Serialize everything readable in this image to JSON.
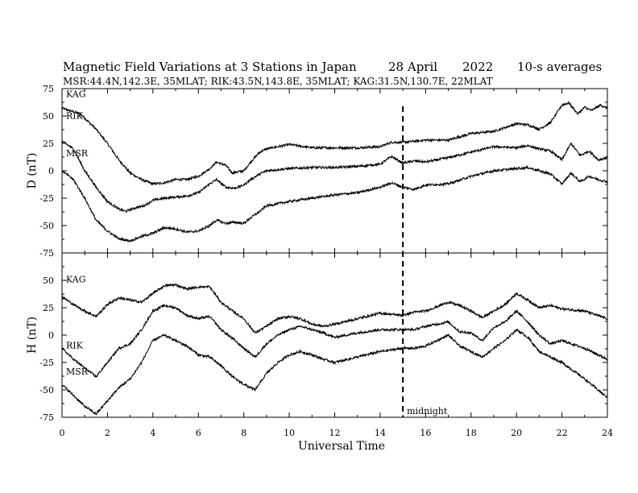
{
  "chart_data": {
    "type": "line",
    "title": "Magnetic Field Variations at 3 Stations in Japan",
    "date": "28  April",
    "year": "2022",
    "averaging": "10-s averages",
    "subtitle": "MSR:44.4N,142.3E, 35MLAT;   RIK:43.5N,143.8E, 35MLAT;   KAG:31.5N,130.7E, 22MLAT",
    "xlabel": "Universal Time",
    "xlim": [
      0,
      24
    ],
    "x_ticks": [
      "0",
      "2",
      "4",
      "6",
      "8",
      "10",
      "12",
      "14",
      "16",
      "18",
      "20",
      "22",
      "24"
    ],
    "annotation": {
      "label": "midnight",
      "x": 15
    },
    "panels": [
      {
        "ylabel": "D (nT)",
        "ylim": [
          -75,
          75
        ],
        "y_ticks": [
          "75",
          "50",
          "25",
          "0",
          "-25",
          "-50",
          "-75"
        ],
        "series": [
          {
            "name": "KAG",
            "x": [
              0,
              0.8,
              1.5,
              2,
              2.5,
              3,
              3.5,
              4,
              4.5,
              5,
              5.5,
              6,
              6.5,
              6.8,
              7.2,
              7.5,
              8,
              8.3,
              8.7,
              9,
              9.5,
              10,
              11,
              12,
              13,
              14,
              14.5,
              15,
              15.5,
              16,
              17,
              18,
              19,
              20,
              20.5,
              21,
              21.5,
              22,
              22.3,
              22.7,
              23,
              23.3,
              23.7,
              24
            ],
            "values": [
              57,
              52,
              38,
              25,
              10,
              -2,
              -8,
              -12,
              -11,
              -8,
              -8,
              -5,
              2,
              8,
              5,
              -2,
              0,
              8,
              17,
              20,
              22,
              24,
              21,
              21,
              21,
              22,
              26,
              26,
              27,
              28,
              28,
              34,
              36,
              43,
              42,
              38,
              44,
              60,
              62,
              52,
              58,
              55,
              60,
              57
            ]
          },
          {
            "name": "RIK",
            "x": [
              0,
              0.5,
              1,
              1.5,
              2,
              2.5,
              2.8,
              3.2,
              3.6,
              4,
              4.5,
              5,
              5.5,
              6,
              6.5,
              6.8,
              7.2,
              7.6,
              8,
              8.3,
              8.7,
              9,
              10,
              11,
              12,
              13,
              14,
              14.5,
              15,
              15.5,
              16,
              17,
              18,
              19,
              20,
              20.5,
              21,
              21.5,
              22,
              22.4,
              22.8,
              23.2,
              23.6,
              24
            ],
            "values": [
              27,
              20,
              0,
              -15,
              -28,
              -35,
              -37,
              -34,
              -32,
              -27,
              -25,
              -24,
              -23,
              -20,
              -12,
              -8,
              -15,
              -16,
              -13,
              -8,
              -3,
              0,
              2,
              3,
              3,
              4,
              6,
              13,
              7,
              9,
              8,
              12,
              17,
              22,
              21,
              23,
              20,
              18,
              10,
              25,
              14,
              18,
              10,
              12
            ]
          },
          {
            "name": "MSR",
            "x": [
              0,
              0.5,
              1,
              1.5,
              2,
              2.5,
              3,
              3.5,
              4,
              4.5,
              5,
              5.5,
              6,
              6.5,
              6.8,
              7.2,
              7.6,
              8,
              8.3,
              8.7,
              9,
              10,
              11,
              12,
              13,
              14,
              14.5,
              15,
              15.5,
              16,
              17,
              18,
              19,
              20,
              20.5,
              21,
              21.5,
              22,
              22.4,
              22.8,
              23.2,
              23.6,
              24
            ],
            "values": [
              0,
              -8,
              -25,
              -45,
              -55,
              -62,
              -64,
              -60,
              -57,
              -52,
              -53,
              -56,
              -55,
              -50,
              -45,
              -48,
              -47,
              -48,
              -43,
              -37,
              -32,
              -28,
              -25,
              -22,
              -20,
              -15,
              -11,
              -15,
              -17,
              -13,
              -12,
              -5,
              0,
              2,
              3,
              0,
              -3,
              -12,
              -2,
              -10,
              -5,
              -8,
              -10
            ]
          }
        ]
      },
      {
        "ylabel": "H (nT)",
        "ylim": [
          -75,
          75
        ],
        "y_ticks": [
          "50",
          "25",
          "0",
          "-25",
          "-50",
          "-75"
        ],
        "series": [
          {
            "name": "KAG",
            "x": [
              0,
              0.5,
              1,
              1.5,
              2,
              2.5,
              3,
              3.5,
              4,
              4.5,
              5,
              5.5,
              6,
              6.5,
              7,
              7.5,
              8,
              8.5,
              9,
              9.5,
              10,
              10.5,
              11,
              11.5,
              12,
              13,
              14,
              15,
              15.5,
              16,
              16.5,
              17,
              17.5,
              18,
              18.5,
              19,
              19.5,
              20,
              20.5,
              21,
              21.5,
              22,
              23,
              24
            ],
            "values": [
              35,
              28,
              22,
              17,
              28,
              34,
              32,
              30,
              38,
              45,
              46,
              42,
              44,
              44,
              30,
              22,
              15,
              2,
              8,
              15,
              17,
              15,
              10,
              8,
              10,
              15,
              20,
              18,
              21,
              22,
              26,
              30,
              27,
              22,
              16,
              22,
              28,
              38,
              32,
              25,
              27,
              24,
              22,
              15
            ]
          },
          {
            "name": "RIK",
            "x": [
              0,
              0.5,
              1,
              1.5,
              2,
              2.5,
              3,
              3.5,
              4,
              4.5,
              5,
              5.5,
              6,
              6.5,
              7,
              7.5,
              8,
              8.5,
              9,
              9.5,
              10,
              10.5,
              11,
              11.5,
              12,
              13,
              14,
              15,
              15.5,
              16,
              16.5,
              17,
              17.5,
              18,
              18.5,
              19,
              19.5,
              20,
              20.5,
              21,
              21.5,
              22,
              23,
              24
            ],
            "values": [
              -12,
              -22,
              -30,
              -38,
              -25,
              -12,
              -8,
              5,
              22,
              27,
              25,
              18,
              15,
              17,
              5,
              -3,
              -12,
              -20,
              -8,
              0,
              5,
              8,
              5,
              2,
              -2,
              2,
              5,
              5,
              5,
              8,
              10,
              12,
              3,
              2,
              -5,
              7,
              12,
              22,
              12,
              0,
              -8,
              -5,
              -12,
              -22
            ]
          },
          {
            "name": "MSR",
            "x": [
              0,
              0.5,
              1,
              1.5,
              2,
              2.5,
              3,
              3.5,
              4,
              4.5,
              5,
              5.5,
              6,
              6.5,
              7,
              7.5,
              8,
              8.5,
              9,
              9.5,
              10,
              10.5,
              11,
              11.5,
              12,
              13,
              14,
              15,
              15.5,
              16,
              16.5,
              17,
              17.5,
              18,
              18.5,
              19,
              19.5,
              20,
              20.5,
              21,
              21.5,
              22,
              23,
              24
            ],
            "values": [
              -45,
              -55,
              -65,
              -72,
              -60,
              -48,
              -40,
              -25,
              -5,
              0,
              -5,
              -10,
              -18,
              -20,
              -28,
              -38,
              -45,
              -50,
              -35,
              -25,
              -18,
              -15,
              -18,
              -22,
              -25,
              -20,
              -15,
              -12,
              -12,
              -10,
              -5,
              0,
              -10,
              -15,
              -20,
              -12,
              -5,
              5,
              -2,
              -15,
              -20,
              -25,
              -40,
              -57
            ]
          }
        ]
      }
    ]
  }
}
